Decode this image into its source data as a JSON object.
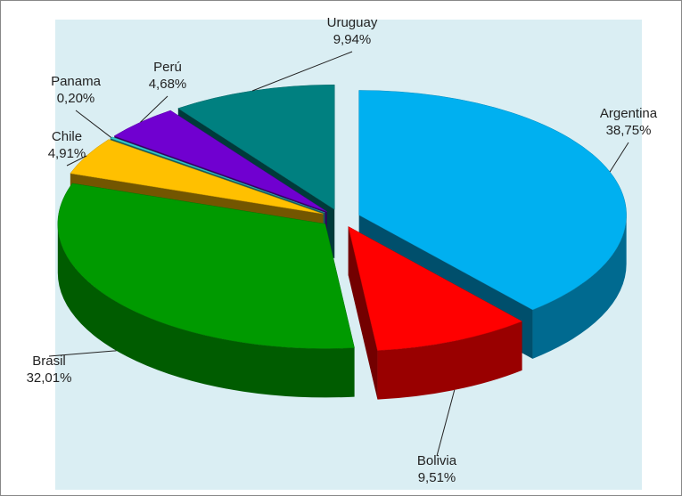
{
  "chart_data": {
    "type": "pie",
    "categories": [
      "Argentina",
      "Bolivia",
      "Brasil",
      "Chile",
      "Panama",
      "Perú",
      "Uruguay"
    ],
    "values": [
      38.75,
      9.51,
      32.01,
      4.91,
      0.2,
      4.68,
      9.94
    ],
    "value_labels": [
      "38,75%",
      "9,51%",
      "32,01%",
      "4,91%",
      "0,20%",
      "4,68%",
      "9,94%"
    ],
    "colors": [
      "#00b0f0",
      "#ff0000",
      "#009a00",
      "#ffc000",
      "#33cccc",
      "#7000d0",
      "#008080"
    ]
  }
}
